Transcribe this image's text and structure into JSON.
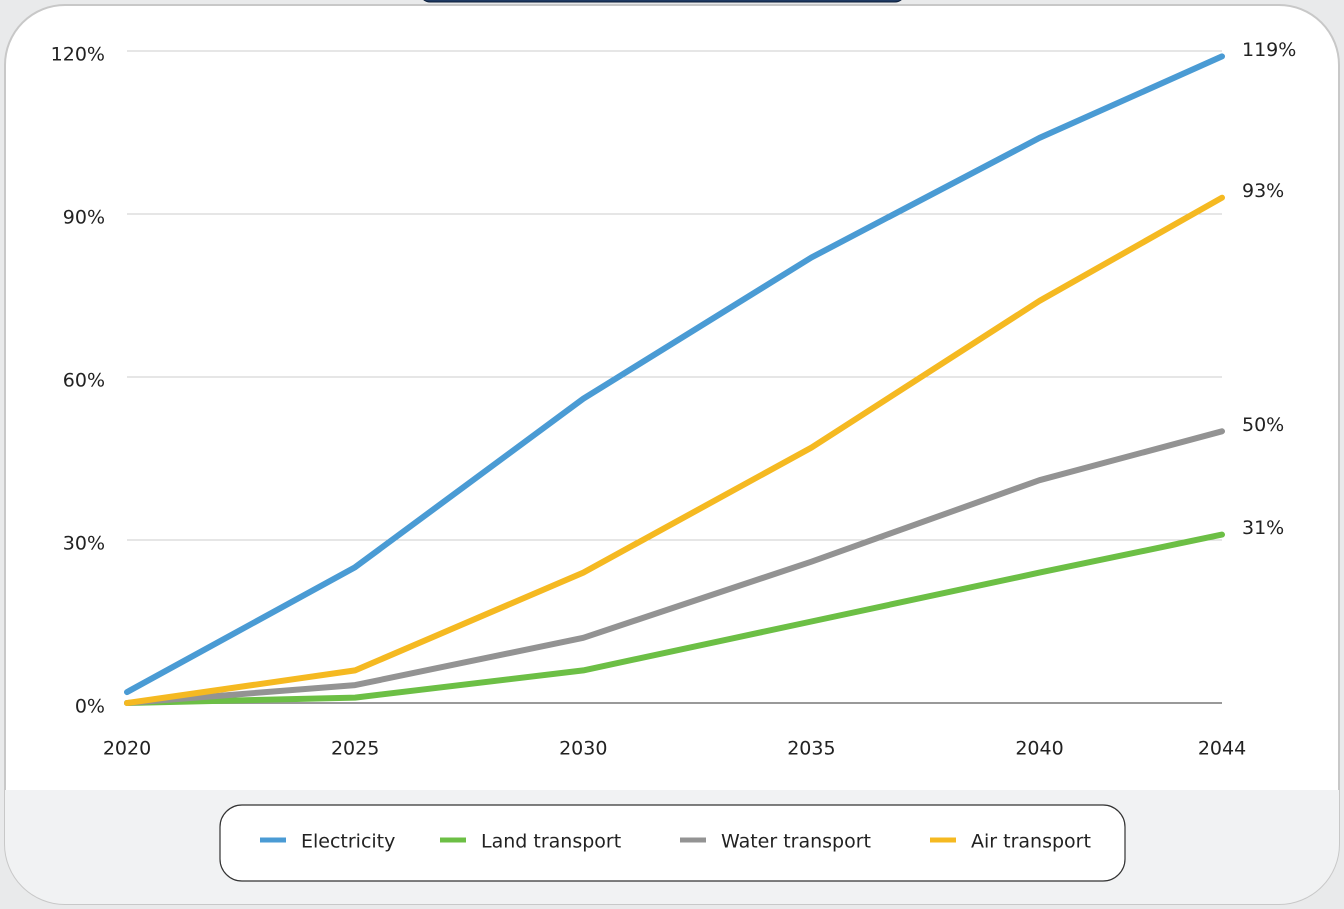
{
  "chart_data": {
    "type": "line",
    "x": [
      2020,
      2025,
      2030,
      2035,
      2040,
      2044
    ],
    "xlim": [
      2020,
      2044
    ],
    "xticks": [
      2020,
      2025,
      2030,
      2035,
      2040,
      2044
    ],
    "ylim": [
      0,
      120
    ],
    "yticks": [
      {
        "value": 0,
        "label": "0%"
      },
      {
        "value": 30,
        "label": "30%"
      },
      {
        "value": 60,
        "label": "60%"
      },
      {
        "value": 90,
        "label": "90%"
      },
      {
        "value": 120,
        "label": "120%"
      }
    ],
    "grid": true,
    "legend": "bottom",
    "series": [
      {
        "name": "Electricity",
        "color": "#4a9bd4",
        "values": [
          2,
          25,
          56,
          82,
          104,
          119
        ],
        "value_labels": [
          null,
          null,
          null,
          null,
          null,
          "119%"
        ]
      },
      {
        "name": "Land transport",
        "color": "#6cbf45",
        "values": [
          0,
          1,
          6,
          15,
          24,
          31
        ],
        "value_labels": [
          null,
          null,
          null,
          null,
          null,
          "31%"
        ]
      },
      {
        "name": "Water transport",
        "color": "#939393",
        "values": [
          0,
          3.3,
          12,
          26,
          41,
          50
        ],
        "value_labels": [
          null,
          null,
          null,
          null,
          null,
          "50%"
        ]
      },
      {
        "name": "Air transport",
        "color": "#f5b921",
        "values": [
          0,
          6,
          24,
          47,
          74,
          93
        ],
        "value_labels": [
          null,
          null,
          null,
          null,
          null,
          "93%"
        ]
      }
    ]
  }
}
